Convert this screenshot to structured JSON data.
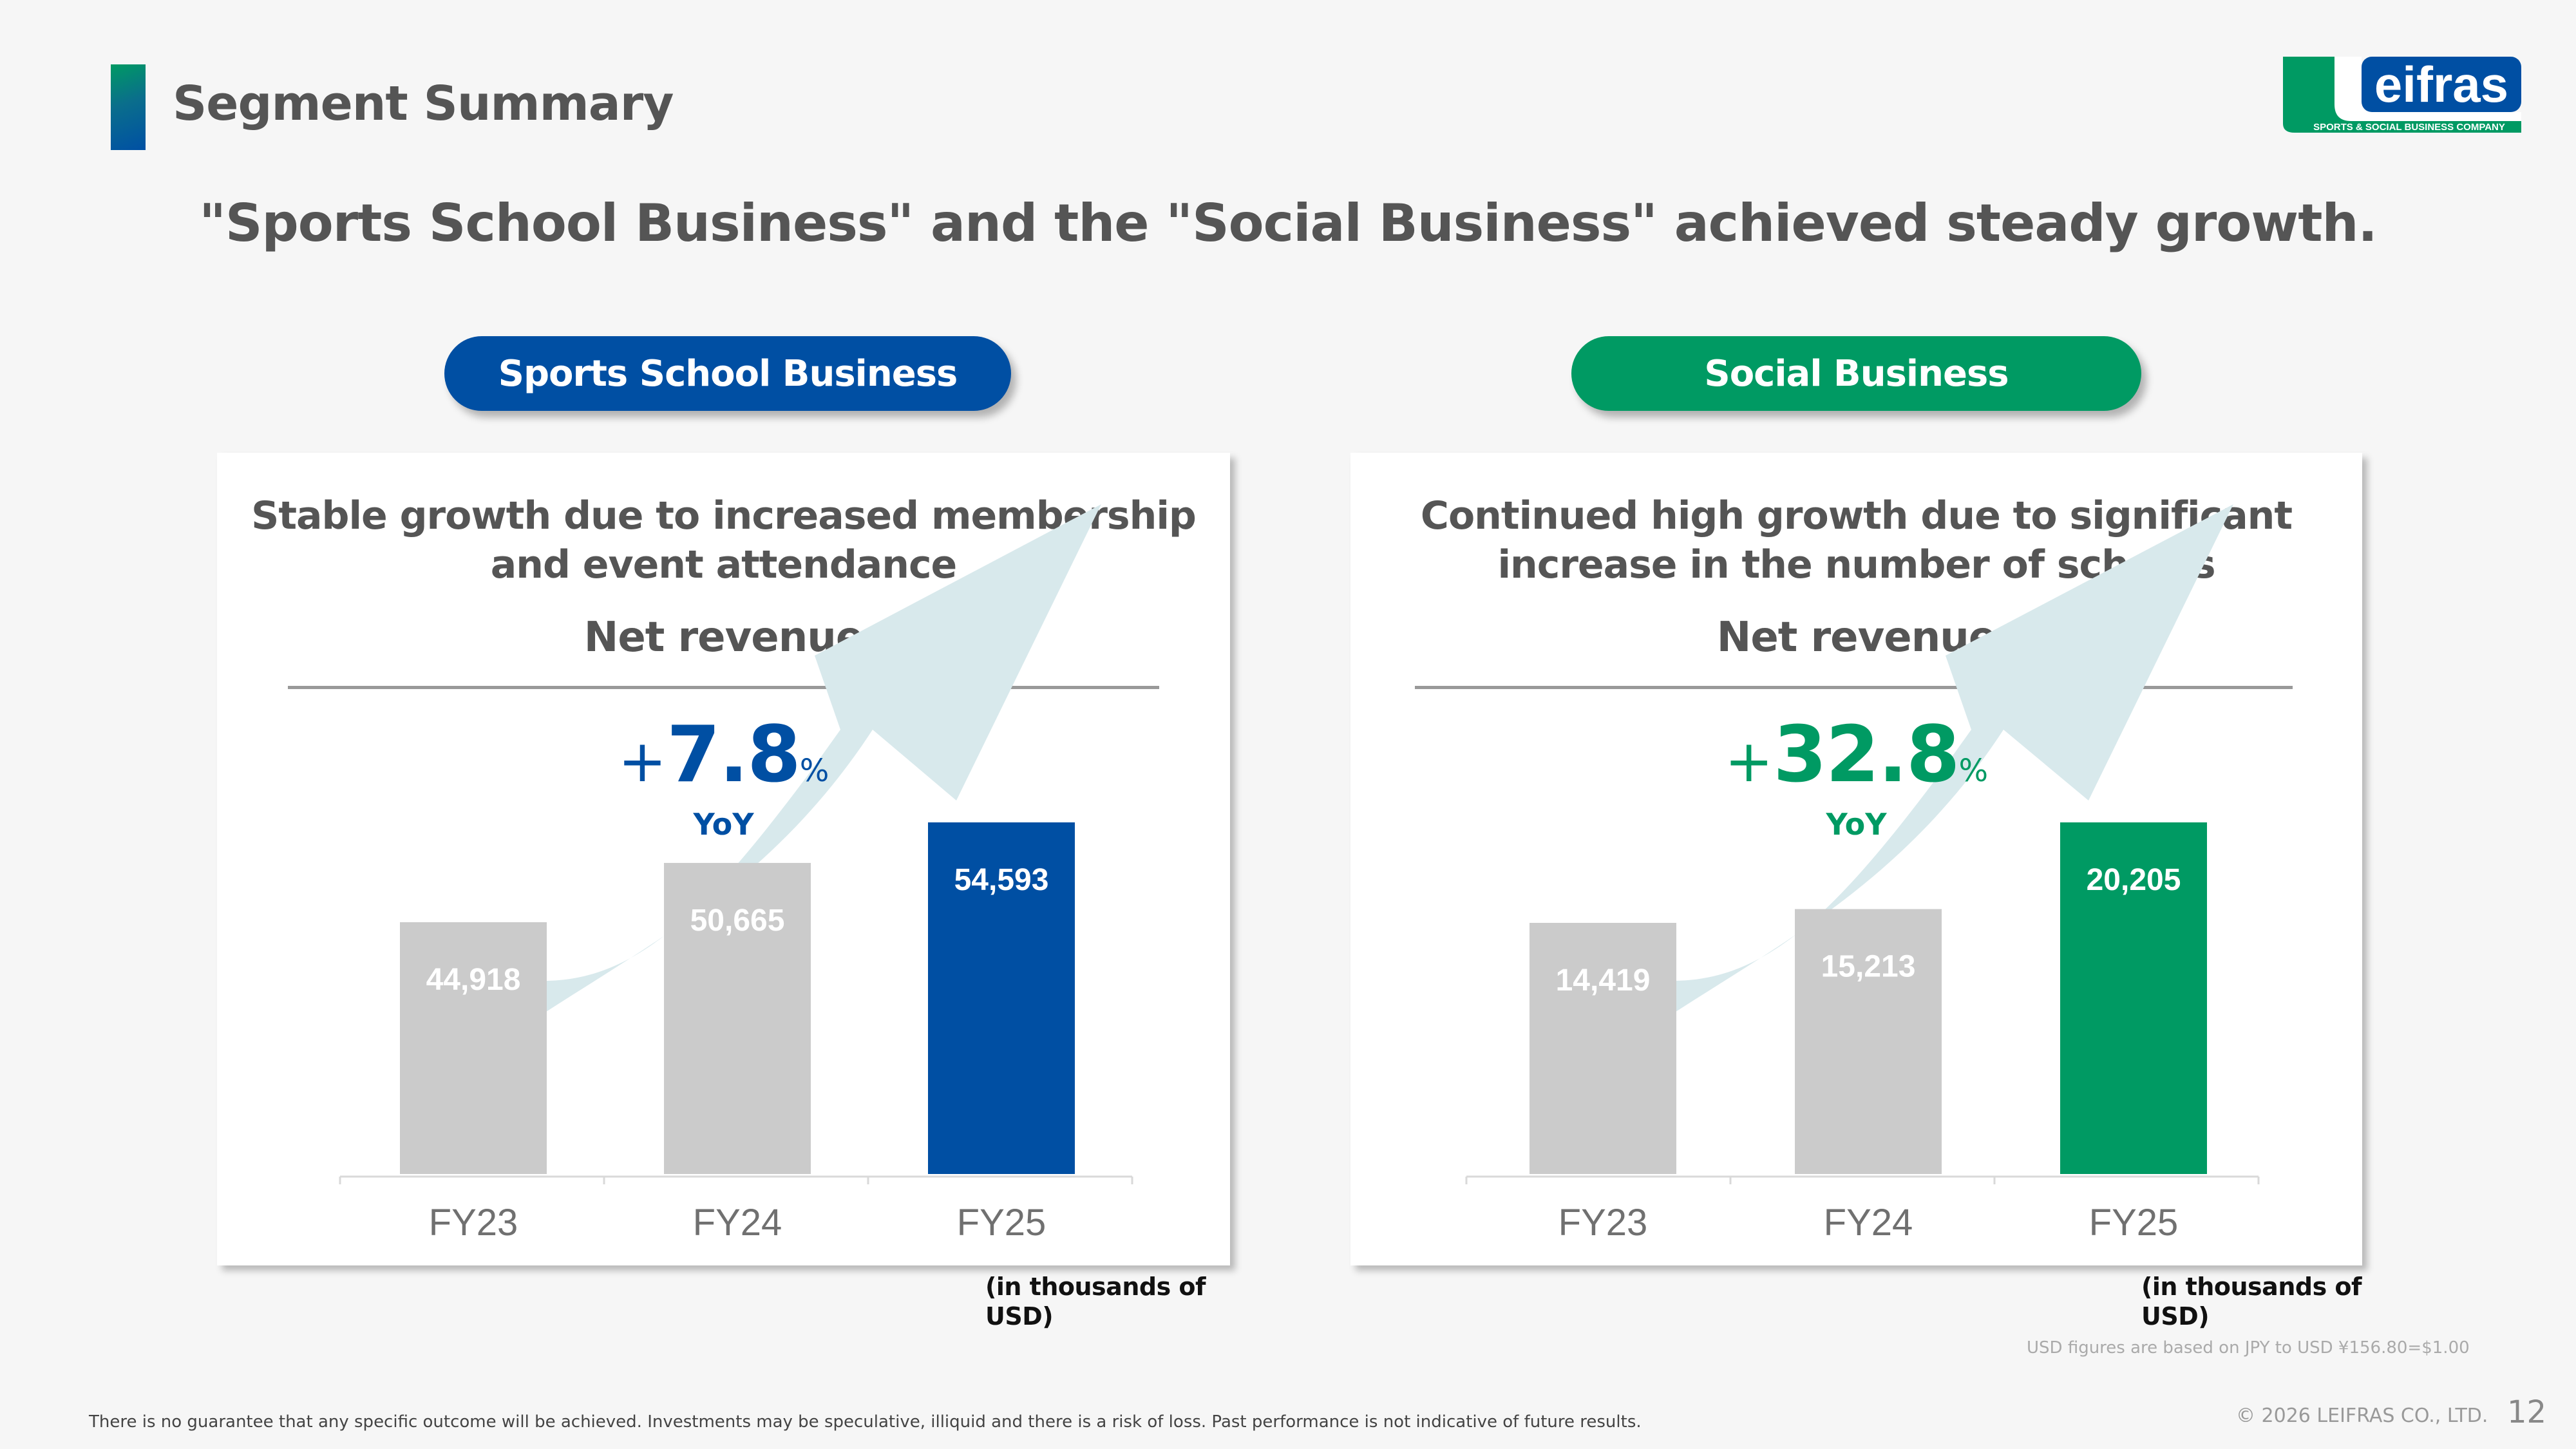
{
  "header": {
    "title": "Segment Summary",
    "headline": "\"Sports School Business\" and the \"Social Business\" achieved steady growth."
  },
  "logo": {
    "wordmark": "eifras",
    "initial": "l",
    "tagline": "SPORTS & SOCIAL BUSINESS COMPANY"
  },
  "colors": {
    "blue": "#004fa3",
    "green": "#009a63",
    "gray_bar": "#cbcbcb",
    "arrow": "#d8e9ec",
    "text": "#555555"
  },
  "segments": [
    {
      "pill_label": "Sports School Business",
      "card_title": "Stable growth due to increased membership and event attendance",
      "metric_label": "Net revenue",
      "growth": {
        "plus": "+",
        "value": "7.8",
        "unit": "%",
        "label": "YoY"
      },
      "unit_note": "(in thousands of USD)",
      "accent": "#004fa3"
    },
    {
      "pill_label": "Social Business",
      "card_title": "Continued high growth due to significant increase in the number of schools",
      "metric_label": "Net revenue",
      "growth": {
        "plus": "+",
        "value": "32.8",
        "unit": "%",
        "label": "YoY"
      },
      "unit_note": "(in thousands of USD)",
      "accent": "#009a63"
    }
  ],
  "chart_data": [
    {
      "type": "bar",
      "title": "Sports School Business - Net revenue",
      "categories": [
        "FY23",
        "FY24",
        "FY25"
      ],
      "values": [
        44918,
        50665,
        54593
      ],
      "value_labels": [
        "44,918",
        "50,665",
        "54,593"
      ],
      "highlight_index": 2,
      "xlabel": "",
      "ylabel": "",
      "unit": "thousands of USD",
      "grid": false,
      "annotation": "+7.8% YoY"
    },
    {
      "type": "bar",
      "title": "Social Business - Net revenue",
      "categories": [
        "FY23",
        "FY24",
        "FY25"
      ],
      "values": [
        14419,
        15213,
        20205
      ],
      "value_labels": [
        "14,419",
        "15,213",
        "20,205"
      ],
      "highlight_index": 2,
      "xlabel": "",
      "ylabel": "",
      "unit": "thousands of USD",
      "grid": false,
      "annotation": "+32.8% YoY"
    }
  ],
  "footer": {
    "fx_note": "USD figures are based on JPY to USD ¥156.80=$1.00",
    "disclaimer": "There is no guarantee that any specific outcome will be achieved. Investments may be speculative, illiquid and there is a risk of loss. Past performance is not indicative of future results.",
    "copyright": "© 2026 LEIFRAS CO., LTD.",
    "page_number": "12"
  }
}
